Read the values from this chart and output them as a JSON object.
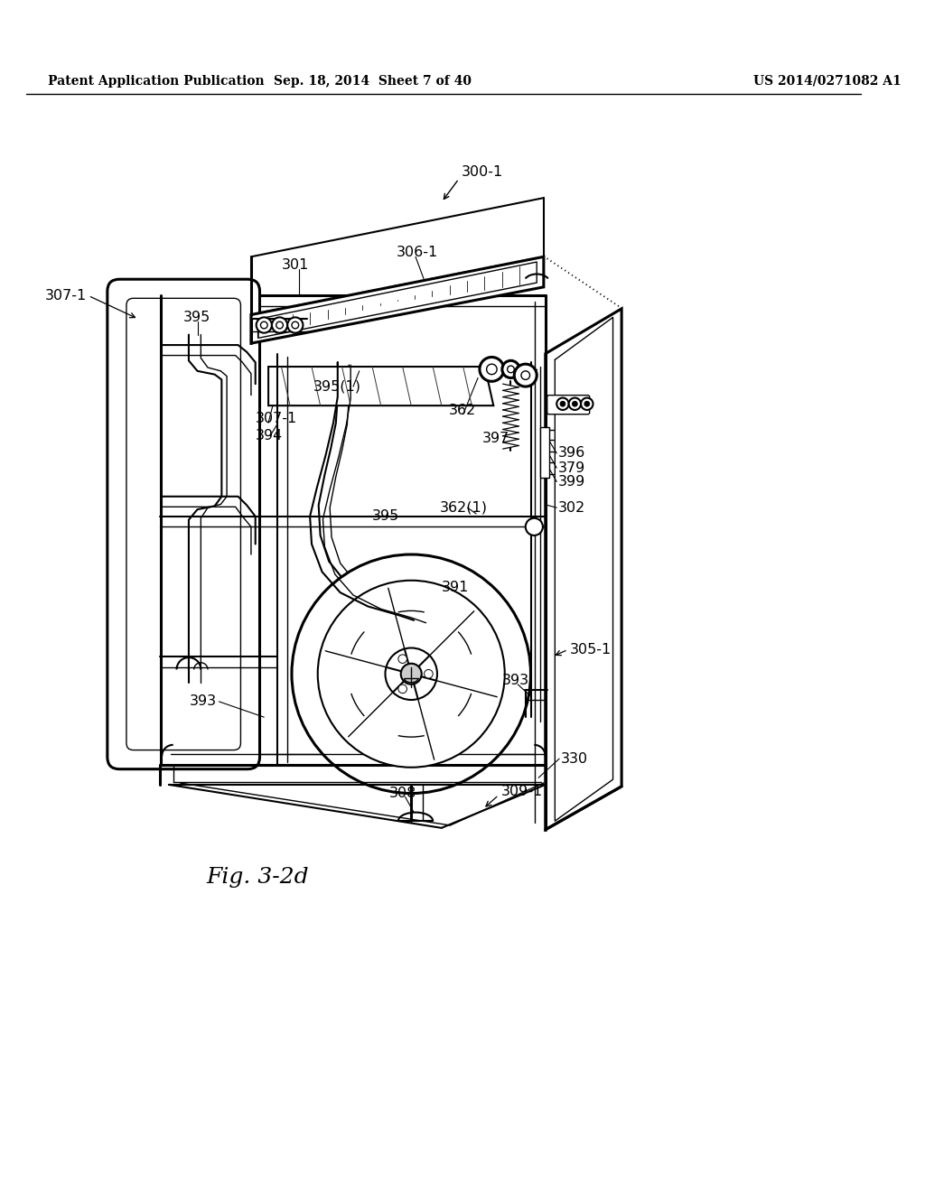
{
  "bg_color": "#ffffff",
  "line_color": "#000000",
  "header_left": "Patent Application Publication",
  "header_mid": "Sep. 18, 2014  Sheet 7 of 40",
  "header_right": "US 2014/0271082 A1",
  "fig_label": "Fig. 3-2d"
}
